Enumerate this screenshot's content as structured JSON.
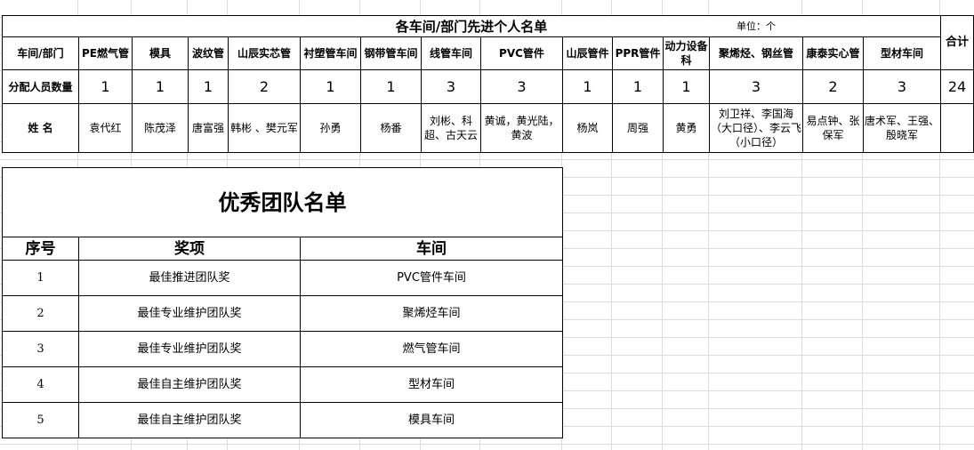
{
  "individual": {
    "title": "各车间/部门先进个人名单",
    "unit": "单位：个",
    "row_labels": {
      "dept": "车间/部门",
      "count": "分配人员数量",
      "names": "姓 名"
    },
    "total_label": "合计",
    "total": "24",
    "columns": [
      {
        "dept": "PE燃气管",
        "count": "1",
        "names": "袁代红"
      },
      {
        "dept": "模具",
        "count": "1",
        "names": "陈茂泽"
      },
      {
        "dept": "波纹管",
        "count": "1",
        "names": "唐富强"
      },
      {
        "dept": "山辰实芯管",
        "count": "2",
        "names": "韩彬 、樊元军"
      },
      {
        "dept": "衬塑管车间",
        "count": "1",
        "names": "孙勇"
      },
      {
        "dept": "钢带管车间",
        "count": "1",
        "names": "杨番"
      },
      {
        "dept": "线管车间",
        "count": "3",
        "names": "刘彬、科超、古天云"
      },
      {
        "dept": "PVC管件",
        "count": "3",
        "names": "黄诚，黄光陆，黄波"
      },
      {
        "dept": "山辰管件",
        "count": "1",
        "names": "杨岚"
      },
      {
        "dept": "PPR管件",
        "count": "1",
        "names": "周强"
      },
      {
        "dept": "动力设备科",
        "count": "1",
        "names": "黄勇"
      },
      {
        "dept": "聚烯烃、钢丝管",
        "count": "3",
        "names": "刘卫祥、李国海（大口径）、李云飞（小口径）"
      },
      {
        "dept": "康泰实心管",
        "count": "2",
        "names": "易点钟、张保军"
      },
      {
        "dept": "型材车间",
        "count": "3",
        "names": "唐术军、王强、殷晓军"
      }
    ]
  },
  "team": {
    "title": "优秀团队名单",
    "headers": [
      "序号",
      "奖项",
      "车间"
    ],
    "rows": [
      [
        "1",
        "最佳推进团队奖",
        "PVC管件车间"
      ],
      [
        "2",
        "最佳专业维护团队奖",
        "聚烯烃车间"
      ],
      [
        "3",
        "最佳专业维护团队奖",
        "燃气管车间"
      ],
      [
        "4",
        "最佳自主维护团队奖",
        "型材车间"
      ],
      [
        "5",
        "最佳自主维护团队奖",
        "模具车间"
      ]
    ]
  }
}
